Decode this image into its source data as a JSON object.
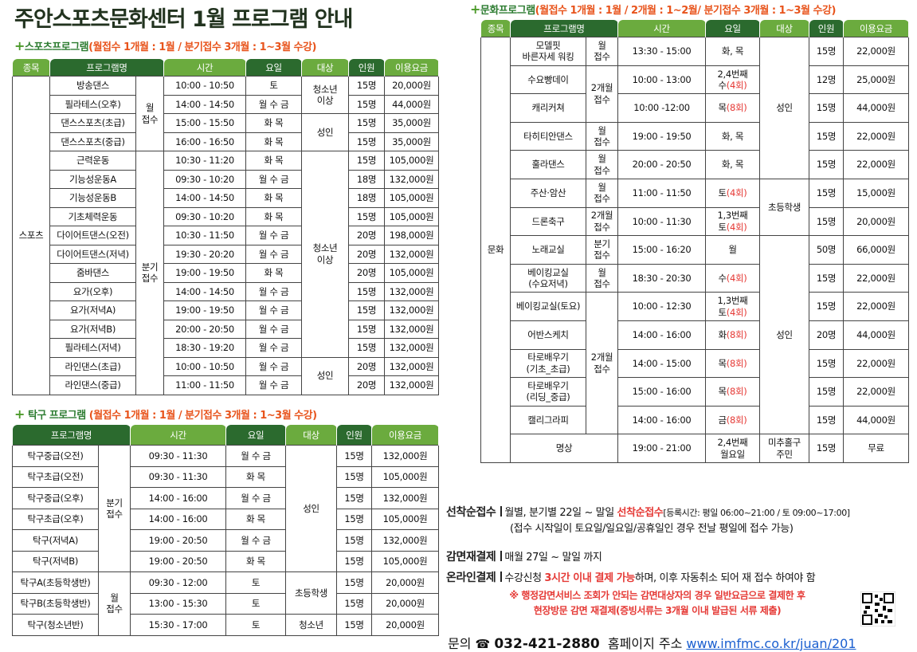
{
  "header": {
    "title": "주안스포츠문화센터 1월 프로그램 안내"
  },
  "sports": {
    "heading": "스포츠프로그램",
    "note": "(월접수 1개월 : 1월 / 분기접수 3개월 : 1~3월 수강)",
    "columns": [
      "종목",
      "프로그램명",
      "시간",
      "요일",
      "대상",
      "인원",
      "이용요금"
    ],
    "rows": [
      [
        "스포츠",
        "방송댄스",
        "월\n접수",
        "10:00 - 10:50",
        "토",
        "청소년\n이상",
        "15명",
        "20,000원"
      ],
      [
        "필라테스(오후)",
        "14:00 - 14:50",
        "월 수 금",
        "15명",
        "44,000원"
      ],
      [
        "댄스스포츠(초급)",
        "15:00 - 15:50",
        "화 목",
        "성인",
        "15명",
        "35,000원"
      ],
      [
        "댄스스포츠(중급)",
        "16:00 - 16:50",
        "화 목",
        "15명",
        "35,000원"
      ],
      [
        "근력운동",
        "분기\n접수",
        "10:30 - 11:20",
        "화 목",
        "청소년\n이상",
        "15명",
        "105,000원"
      ],
      [
        "기능성운동A",
        "09:30 - 10:20",
        "월 수 금",
        "18명",
        "132,000원"
      ],
      [
        "기능성운동B",
        "14:00 - 14:50",
        "화 목",
        "18명",
        "105,000원"
      ],
      [
        "기초체력운동",
        "09:30 - 10:20",
        "화 목",
        "15명",
        "105,000원"
      ],
      [
        "다이어트댄스(오전)",
        "10:30 - 11:50",
        "월 수 금",
        "20명",
        "198,000원"
      ],
      [
        "다이어트댄스(저녁)",
        "19:30 - 20:20",
        "월 수 금",
        "20명",
        "132,000원"
      ],
      [
        "줌바댄스",
        "19:00 - 19:50",
        "화 목",
        "20명",
        "105,000원"
      ],
      [
        "요가(오후)",
        "14:00 - 14:50",
        "월 수 금",
        "15명",
        "132,000원"
      ],
      [
        "요가(저녁A)",
        "19:00 - 19:50",
        "월 수 금",
        "15명",
        "132,000원"
      ],
      [
        "요가(저녁B)",
        "20:00 - 20:50",
        "월 수 금",
        "15명",
        "132,000원"
      ],
      [
        "필라테스(저녁)",
        "18:30 - 19:20",
        "월 수 금",
        "15명",
        "132,000원"
      ],
      [
        "라인댄스(초급)",
        "10:00 - 10:50",
        "월 수 금",
        "성인",
        "20명",
        "132,000원"
      ],
      [
        "라인댄스(중급)",
        "11:00 - 11:50",
        "월 수 금",
        "20명",
        "132,000원"
      ]
    ]
  },
  "table_tennis": {
    "heading": "탁구 프로그램",
    "note": "(월접수 1개월 : 1월 / 분기접수 3개월 : 1~3월 수강)",
    "columns": [
      "프로그램명",
      "시간",
      "요일",
      "대상",
      "인원",
      "이용요금"
    ],
    "rows": [
      [
        "탁구중급(오전)",
        "분기\n접수",
        "09:30 - 11:30",
        "월 수 금",
        "성인",
        "15명",
        "132,000원"
      ],
      [
        "탁구초급(오전)",
        "09:30 - 11:30",
        "화 목",
        "15명",
        "105,000원"
      ],
      [
        "탁구중급(오후)",
        "14:00 - 16:00",
        "월 수 금",
        "15명",
        "132,000원"
      ],
      [
        "탁구초급(오후)",
        "14:00 - 16:00",
        "화 목",
        "15명",
        "105,000원"
      ],
      [
        "탁구(저녁A)",
        "19:00 - 20:50",
        "월 수 금",
        "15명",
        "132,000원"
      ],
      [
        "탁구(저녁B)",
        "19:00 - 20:50",
        "화 목",
        "15명",
        "105,000원"
      ],
      [
        "탁구A(초등학생반)",
        "월\n접수",
        "09:30 - 12:00",
        "토",
        "초등학생",
        "15명",
        "20,000원"
      ],
      [
        "탁구B(초등학생반)",
        "13:00 - 15:30",
        "토",
        "15명",
        "20,000원"
      ],
      [
        "탁구(청소년반)",
        "15:30 - 17:00",
        "토",
        "청소년",
        "15명",
        "20,000원"
      ]
    ]
  },
  "culture": {
    "heading": "문화프로그램",
    "note": "(월접수 1개월 : 1월 / 2개월 : 1~2월/ 분기접수 3개월 : 1~3월 수강)",
    "columns": [
      "종목",
      "프로그램명",
      "시간",
      "요일",
      "대상",
      "인원",
      "이용요금"
    ],
    "rows": [
      [
        "문화",
        "모델핏\n바른자세 워킹",
        "월\n접수",
        "13:30 - 15:00",
        "화, 목",
        "성인",
        "15명",
        "22,000원"
      ],
      [
        "수요빵데이",
        "2개월\n접수",
        "10:00 - 13:00",
        [
          "2,4번째\n수",
          "(4회)"
        ],
        "12명",
        "25,000원"
      ],
      [
        "캐리커쳐",
        "10:00 -12:00",
        [
          "목",
          "(8회)"
        ],
        "15명",
        "44,000원"
      ],
      [
        "타히티안댄스",
        "월\n접수",
        "19:00 - 19:50",
        "화, 목",
        "15명",
        "22,000원"
      ],
      [
        "훌라댄스",
        "월\n접수",
        "20:00 - 20:50",
        "화, 목",
        "15명",
        "22,000원"
      ],
      [
        "주산·암산",
        "월\n접수",
        "11:00 - 11:50",
        [
          "토",
          "(4회)"
        ],
        "초등학생",
        "15명",
        "15,000원"
      ],
      [
        "드론축구",
        "2개월\n접수",
        "10:00 - 11:30",
        [
          "1,3번째\n토",
          "(4회)"
        ],
        "15명",
        "20,000원"
      ],
      [
        "노래교실",
        "분기\n접수",
        "15:00 - 16:20",
        "월",
        "성인",
        "50명",
        "66,000원"
      ],
      [
        "베이킹교실\n(수요저녁)",
        "월\n접수",
        "18:30 - 20:30",
        [
          "수",
          "(4회)"
        ],
        "15명",
        "22,000원"
      ],
      [
        "베이킹교실(토요)",
        "2개월\n접수",
        "10:00 - 12:30",
        [
          "1,3번째\n토",
          "(4회)"
        ],
        "15명",
        "22,000원"
      ],
      [
        "어반스케치",
        "14:00 - 16:00",
        [
          "화",
          "(8회)"
        ],
        "20명",
        "44,000원"
      ],
      [
        "타로배우기\n(기초_초급)",
        "14:00 - 15:00",
        [
          "목",
          "(8회)"
        ],
        "15명",
        "22,000원"
      ],
      [
        "타로배우기\n(리딩_중급)",
        "15:00 - 16:00",
        [
          "목",
          "(8회)"
        ],
        "15명",
        "22,000원"
      ],
      [
        "캘리그라피",
        "14:00 - 16:00",
        [
          "금",
          "(8회)"
        ],
        "15명",
        "44,000원"
      ],
      [
        "명상",
        "19:00 - 21:00",
        "2,4번째\n월요일",
        "미추홀구\n주민",
        "15명",
        "무료"
      ]
    ]
  },
  "notices": [
    {
      "label": "선착순접수",
      "parts": [
        "월별, 분기별 22일 ~ 말일 ",
        "선착순접수"
      ],
      "hours": "[등록시간: 평일 06:00~21:00 / 토 09:00~17:00]",
      "detail": "(접수 시작일이 토요일/일요일/공휴일인 경우 전날 평일에 접수 가능)"
    },
    {
      "label": "감면재결제",
      "parts": [
        "매월 27일 ~ 말일 까지"
      ]
    },
    {
      "label": "온라인결제",
      "parts": [
        "수강신청 ",
        "3시간 이내 결제 가능",
        "하며, 이후 자동취소 되어 재 접수 하여야 함"
      ]
    }
  ],
  "warning": [
    "※ 행정감면서비스 조회가 안되는 감면대상자의 경우 일반요금으로 결제한 후",
    "현장방문 감면 재결제(증빙서류는 3개월 이내 발급된 서류 제출)"
  ],
  "contact": {
    "label": "문의",
    "phone": "032-421-2880",
    "homepage_label": "홈페이지 주소",
    "homepage": "www.imfmc.co.kr/juan/201"
  }
}
